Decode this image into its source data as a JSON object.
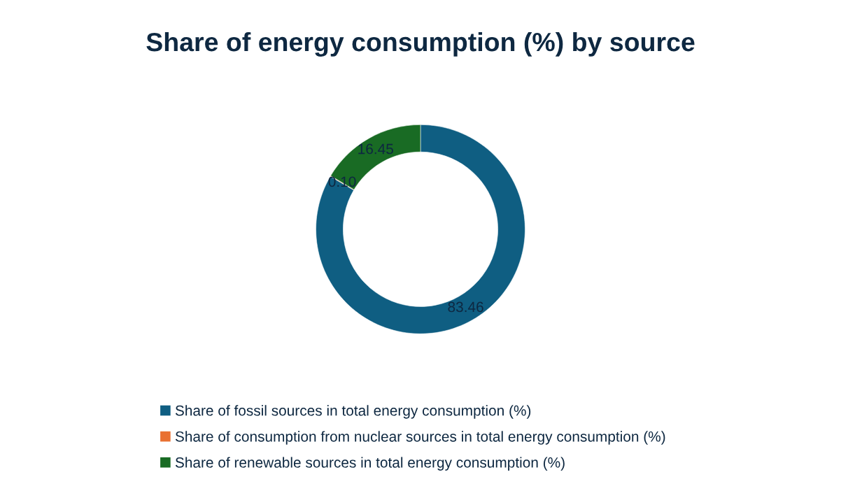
{
  "chart_data": {
    "type": "donut",
    "title": "Share of energy consumption (%) by source",
    "categories": [
      "Share of fossil sources in total energy consumption (%)",
      "Share of consumption from nuclear sources in total energy consumption (%)",
      "Share of renewable sources in total energy consumption (%)"
    ],
    "values": [
      83.46,
      0.1,
      16.45
    ],
    "colors": [
      "#0f5e82",
      "#e97132",
      "#196b24"
    ],
    "value_labels": [
      "83.46",
      "0.10",
      "16.45"
    ],
    "legend": "bottom"
  }
}
